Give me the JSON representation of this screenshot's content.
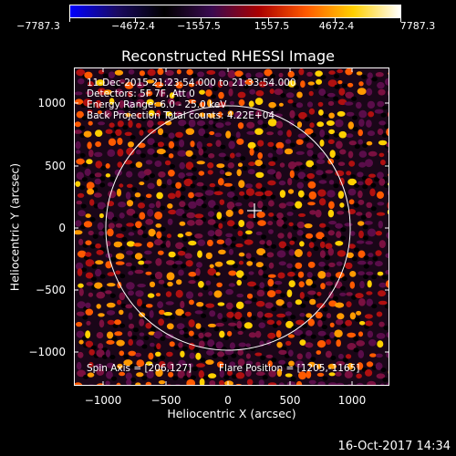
{
  "colorbar": {
    "ticks": [
      "−7787.3",
      "−4672.4",
      "−1557.5",
      "1557.5",
      "4672.4",
      "7787.3"
    ],
    "colors": [
      "#0000ff",
      "#1a0a60",
      "#000000",
      "#3a0a50",
      "#aa0000",
      "#ff5a00",
      "#ffd000",
      "#ffffff"
    ]
  },
  "plot": {
    "title": "Reconstructed RHESSI Image",
    "annotations": [
      "11-Dec-2015 21:23:54.000 to 21:33:54.000",
      "Detectors: 5F 7F, Att 0",
      "Energy Range: 6.0 - 25.0 keV",
      "Back Projection     Total counts: 4.22E+04"
    ],
    "spin_axis": "Spin Axis = [206,127]",
    "flare_position": "Flare Position = [1205,-1165]",
    "xlabel": "Heliocentric X (arcsec)",
    "ylabel": "Heliocentric Y (arcsec)",
    "xticks": [
      "−1000",
      "−500",
      "0",
      "500",
      "1000"
    ],
    "yticks": [
      "1000",
      "500",
      "0",
      "−500",
      "−1000"
    ],
    "solar_limb_color": "#ffffff"
  },
  "timestamp": "16-Oct-2017 14:34"
}
